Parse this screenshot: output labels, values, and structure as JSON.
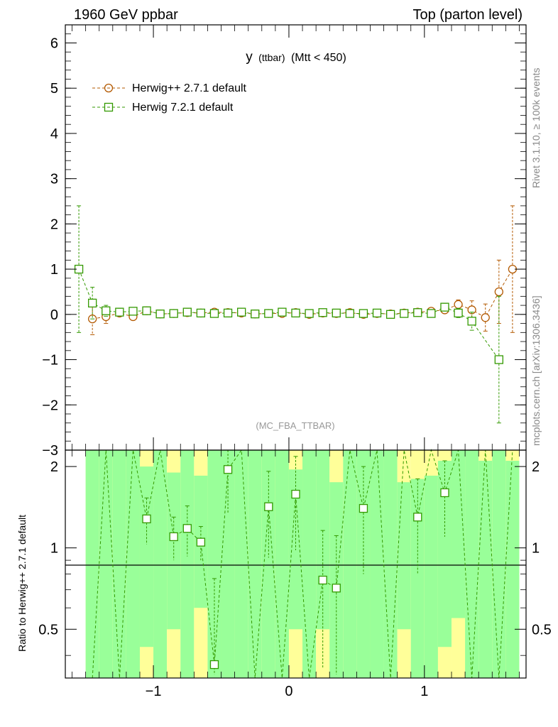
{
  "header": {
    "left": "1960 GeV ppbar",
    "right": "Top (parton level)"
  },
  "side_labels": {
    "upper": "Rivet 3.1.10, ≥ 100k events",
    "lower": "mcplots.cern.ch [arXiv:1306.3436]"
  },
  "plot_title_main": "y",
  "plot_title_sub": "(ttbar)",
  "plot_title_tail": "(Mtt < 450)",
  "analysis_tag": "(MC_FBA_TTBAR)",
  "ratio_ylabel": "Ratio to Herwig++ 2.7.1 default",
  "colors": {
    "herwigpp": "#b35900",
    "herwig7": "#339900",
    "band_green": "#99ff99",
    "band_yellow": "#ffff99"
  },
  "chart_data": [
    {
      "type": "scatter",
      "title": "y (ttbar) (Mtt < 450)",
      "xlim": [
        -1.65,
        1.75
      ],
      "ylim": [
        -3,
        6.4
      ],
      "yticks": [
        -3,
        -2,
        -1,
        0,
        1,
        2,
        3,
        4,
        5,
        6
      ],
      "xticks": [
        -1,
        0,
        1
      ],
      "legend_position": "top-left",
      "x": [
        -1.55,
        -1.45,
        -1.35,
        -1.25,
        -1.15,
        -1.05,
        -0.95,
        -0.85,
        -0.75,
        -0.65,
        -0.55,
        -0.45,
        -0.35,
        -0.25,
        -0.15,
        -0.05,
        0.05,
        0.15,
        0.25,
        0.35,
        0.45,
        0.55,
        0.65,
        0.75,
        0.85,
        0.95,
        1.05,
        1.15,
        1.25,
        1.35,
        1.45,
        1.55,
        1.65
      ],
      "series": [
        {
          "name": "Herwig++ 2.7.1 default",
          "marker": "circle",
          "values": [
            null,
            -0.1,
            -0.05,
            0.03,
            -0.05,
            0.08,
            0.01,
            0.02,
            0.04,
            0.03,
            0.05,
            0.04,
            0.03,
            0.01,
            0.02,
            0.02,
            0.04,
            0.0,
            0.03,
            0.02,
            0.04,
            0.0,
            0.02,
            0.01,
            0.03,
            0.05,
            0.07,
            0.1,
            0.22,
            0.1,
            -0.07,
            0.5,
            1.0
          ],
          "errors": [
            null,
            0.35,
            0.15,
            0.08,
            0.06,
            0.05,
            0.04,
            0.04,
            0.04,
            0.04,
            0.04,
            0.04,
            0.04,
            0.04,
            0.04,
            0.04,
            0.04,
            0.04,
            0.04,
            0.04,
            0.04,
            0.04,
            0.04,
            0.04,
            0.04,
            0.05,
            0.06,
            0.08,
            0.1,
            0.2,
            0.3,
            0.7,
            1.4
          ]
        },
        {
          "name": "Herwig 7.2.1 default",
          "marker": "square",
          "values": [
            1.0,
            0.25,
            0.08,
            0.05,
            0.07,
            0.08,
            0.01,
            0.02,
            0.05,
            0.03,
            0.02,
            0.03,
            0.05,
            0.01,
            0.02,
            0.05,
            0.03,
            0.02,
            0.04,
            0.03,
            0.02,
            0.02,
            0.03,
            0.0,
            0.02,
            0.04,
            0.02,
            0.16,
            0.03,
            -0.15,
            null,
            -1.0,
            null
          ],
          "errors": [
            1.4,
            0.35,
            0.12,
            0.08,
            0.06,
            0.05,
            0.04,
            0.04,
            0.04,
            0.04,
            0.04,
            0.04,
            0.04,
            0.04,
            0.04,
            0.04,
            0.04,
            0.04,
            0.04,
            0.04,
            0.04,
            0.04,
            0.04,
            0.04,
            0.04,
            0.05,
            0.06,
            0.08,
            0.1,
            0.2,
            0.3,
            1.4,
            null
          ]
        }
      ]
    },
    {
      "type": "scatter",
      "ylabel": "Ratio to Herwig++ 2.7.1 default",
      "xlim": [
        -1.65,
        1.75
      ],
      "ylim": [
        0.33,
        2.3
      ],
      "yticks": [
        0.5,
        1,
        2
      ],
      "xticks": [
        -1,
        0,
        1
      ],
      "reference_line": 1,
      "x": [
        -1.55,
        -1.45,
        -1.35,
        -1.25,
        -1.15,
        -1.05,
        -0.95,
        -0.85,
        -0.75,
        -0.65,
        -0.55,
        -0.45,
        -0.35,
        -0.25,
        -0.15,
        -0.05,
        0.05,
        0.15,
        0.25,
        0.35,
        0.45,
        0.55,
        0.65,
        0.75,
        0.85,
        0.95,
        1.05,
        1.15,
        1.25,
        1.35,
        1.45,
        1.55,
        1.65
      ],
      "band_green_hi": [
        null,
        2.3,
        2.3,
        2.3,
        2.3,
        2.0,
        2.3,
        1.9,
        2.3,
        1.85,
        2.3,
        2.3,
        2.3,
        2.3,
        2.3,
        2.3,
        1.95,
        2.3,
        2.3,
        1.75,
        2.3,
        2.3,
        2.3,
        2.3,
        1.75,
        1.8,
        1.85,
        2.1,
        2.3,
        2.3,
        2.1,
        2.3,
        2.1
      ],
      "band_green_lo": [
        null,
        0.33,
        0.33,
        0.33,
        0.33,
        0.43,
        0.33,
        0.5,
        0.33,
        0.6,
        0.33,
        0.33,
        0.33,
        0.33,
        0.33,
        0.33,
        0.5,
        0.33,
        0.5,
        0.33,
        0.33,
        0.33,
        0.33,
        0.33,
        0.5,
        0.33,
        0.33,
        0.43,
        0.55,
        0.33,
        0.33,
        0.33,
        0.33
      ],
      "band_yellow_hi": [
        null,
        2.3,
        2.3,
        2.3,
        2.3,
        2.3,
        2.3,
        2.3,
        2.3,
        2.3,
        2.3,
        2.3,
        2.3,
        2.3,
        2.3,
        2.3,
        2.3,
        2.3,
        2.3,
        2.3,
        2.3,
        2.3,
        2.3,
        2.3,
        2.3,
        2.3,
        2.3,
        2.3,
        2.3,
        2.3,
        2.3,
        2.3,
        2.3
      ],
      "band_yellow_lo": [
        null,
        0.33,
        0.33,
        0.33,
        0.33,
        0.33,
        0.33,
        0.33,
        0.33,
        0.33,
        0.33,
        0.33,
        0.33,
        0.33,
        0.33,
        0.33,
        0.33,
        0.33,
        0.33,
        0.33,
        0.33,
        0.33,
        0.33,
        0.33,
        0.33,
        0.33,
        0.33,
        0.33,
        0.33,
        0.33,
        0.33,
        0.33,
        0.33
      ],
      "series": [
        {
          "name": "Herwig 7.2.1 default",
          "marker": "square",
          "values": [
            null,
            null,
            null,
            null,
            null,
            1.28,
            null,
            1.1,
            1.18,
            1.05,
            0.37,
            1.95,
            null,
            null,
            1.42,
            null,
            1.58,
            null,
            0.76,
            0.71,
            null,
            1.4,
            null,
            null,
            null,
            1.3,
            null,
            1.6,
            null,
            null,
            null,
            null,
            null
          ],
          "errors": [
            null,
            null,
            null,
            null,
            null,
            0.25,
            null,
            0.2,
            0.25,
            0.15,
            0.4,
            0.6,
            null,
            null,
            0.5,
            null,
            0.6,
            null,
            0.4,
            0.4,
            null,
            0.6,
            null,
            null,
            null,
            0.5,
            null,
            0.5,
            null,
            null,
            null,
            null,
            null
          ]
        }
      ]
    }
  ]
}
